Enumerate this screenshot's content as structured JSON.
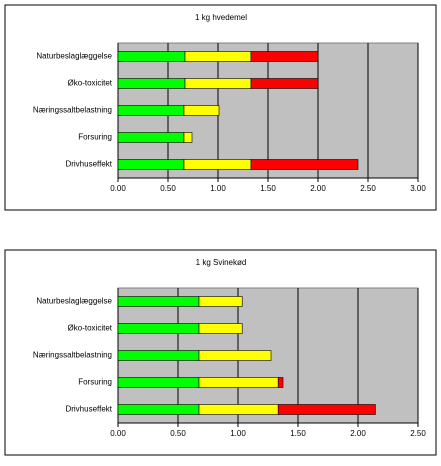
{
  "chart_data": [
    {
      "type": "bar",
      "title": "1 kg hvedemel",
      "categories": [
        "Naturbeslaglæggelse",
        "Øko-toxicitet",
        "Næringssaltbelastning",
        "Forsuring",
        "Drivhuseffekt"
      ],
      "series": [
        {
          "color": "#00ff00",
          "values": [
            0.67,
            0.67,
            0.66,
            0.66,
            0.66
          ]
        },
        {
          "color": "#ffff00",
          "values": [
            0.66,
            0.66,
            0.35,
            0.08,
            0.67
          ]
        },
        {
          "color": "#ff0000",
          "values": [
            0.67,
            0.67,
            0,
            0,
            1.07
          ]
        }
      ],
      "xlim": [
        0,
        3
      ],
      "xticks": [
        {
          "value": 0,
          "label": "0.00"
        },
        {
          "value": 0.5,
          "label": "0.50"
        },
        {
          "value": 1,
          "label": "1.00"
        },
        {
          "value": 1.5,
          "label": "1.50"
        },
        {
          "value": 2,
          "label": "2.00"
        },
        {
          "value": 2.5,
          "label": "2.50"
        },
        {
          "value": 3,
          "label": "3.00"
        }
      ],
      "grid": true
    },
    {
      "type": "bar",
      "title": "1 kg Svinekød",
      "categories": [
        "Naturbeslaglæggelse",
        "Øko-toxicitet",
        "Næringssaltbelastning",
        "Forsuring",
        "Drivhuseffekt"
      ],
      "series": [
        {
          "color": "#00ff00",
          "values": [
            0.675,
            0.675,
            0.675,
            0.675,
            0.675
          ]
        },
        {
          "color": "#ffff00",
          "values": [
            0.36,
            0.36,
            0.6,
            0.66,
            0.66
          ]
        },
        {
          "color": "#ff0000",
          "values": [
            0,
            0,
            0,
            0.04,
            0.81
          ]
        }
      ],
      "xlim": [
        0,
        2.5
      ],
      "xticks": [
        {
          "value": 0,
          "label": "0.00"
        },
        {
          "value": 0.5,
          "label": "0.50"
        },
        {
          "value": 1,
          "label": "1.00"
        },
        {
          "value": 1.5,
          "label": "1.50"
        },
        {
          "value": 2,
          "label": "2.00"
        },
        {
          "value": 2.5,
          "label": "2.50"
        }
      ],
      "grid": true
    }
  ]
}
